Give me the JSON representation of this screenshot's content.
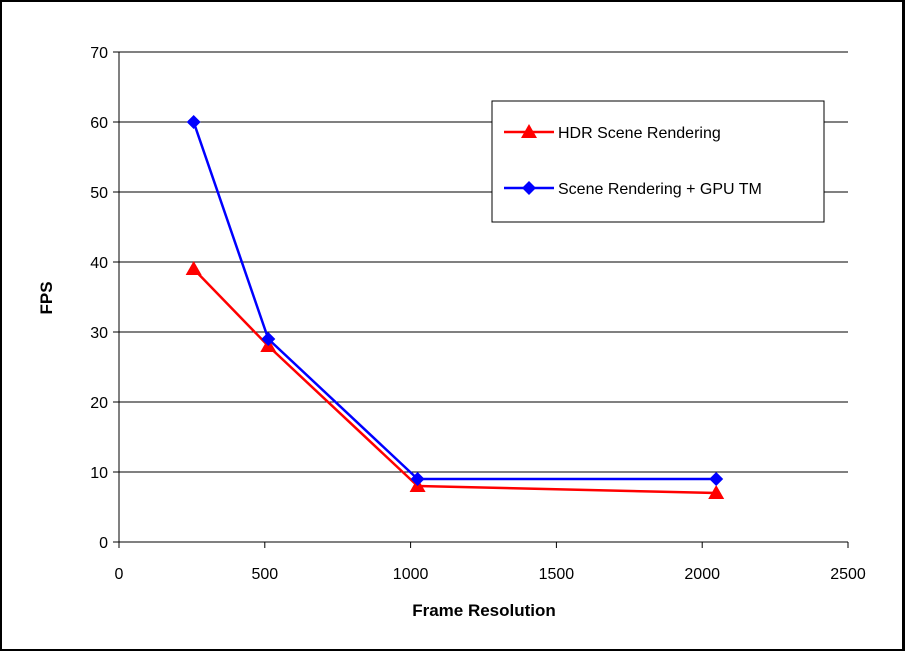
{
  "chart_data": {
    "type": "line",
    "title": "",
    "xlabel": "Frame Resolution",
    "ylabel": "FPS",
    "xlim": [
      0,
      2500
    ],
    "ylim": [
      0,
      70
    ],
    "xticks": [
      "0",
      "500",
      "1000",
      "1500",
      "2000",
      "2500"
    ],
    "yticks": [
      "0",
      "10",
      "20",
      "30",
      "40",
      "50",
      "60",
      "70"
    ],
    "grid": "horizontal",
    "legend_position": "top-right",
    "series": [
      {
        "name": "HDR Scene Rendering",
        "color": "#ff0000",
        "marker": "triangle",
        "x": [
          256,
          512,
          1024,
          2048
        ],
        "y": [
          39,
          28,
          8,
          7
        ]
      },
      {
        "name": "Scene Rendering + GPU TM",
        "color": "#0000ff",
        "marker": "diamond",
        "x": [
          256,
          512,
          1024,
          2048
        ],
        "y": [
          60,
          29,
          9,
          9
        ]
      }
    ]
  }
}
